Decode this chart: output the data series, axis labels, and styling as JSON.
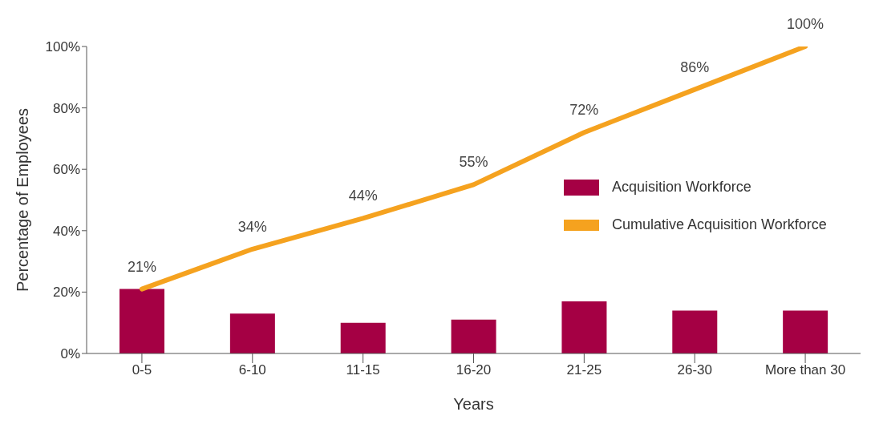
{
  "chart_data": {
    "type": "bar",
    "xlabel": "Years",
    "ylabel": "Percentage of Employees",
    "categories": [
      "0-5",
      "6-10",
      "11-15",
      "16-20",
      "21-25",
      "26-30",
      "More than 30"
    ],
    "series": [
      {
        "name": "Acquisition Workforce",
        "color": "#a50044",
        "values": [
          21,
          13,
          10,
          11,
          17,
          14,
          14
        ]
      },
      {
        "name": "Cumulative Acquisition Workforce",
        "type": "line",
        "color": "#f5a21f",
        "values": [
          21,
          34,
          44,
          55,
          72,
          86,
          100
        ],
        "value_labels": [
          "21%",
          "34%",
          "44%",
          "55%",
          "72%",
          "86%",
          "100%"
        ]
      }
    ],
    "ylim": [
      0,
      100
    ],
    "yticks": [
      {
        "value": 0,
        "label": "0%"
      },
      {
        "value": 20,
        "label": "20%"
      },
      {
        "value": 40,
        "label": "40%"
      },
      {
        "value": 60,
        "label": "60%"
      },
      {
        "value": 80,
        "label": "80%"
      },
      {
        "value": 100,
        "label": "100%"
      }
    ],
    "grid": false,
    "legend": "right"
  }
}
